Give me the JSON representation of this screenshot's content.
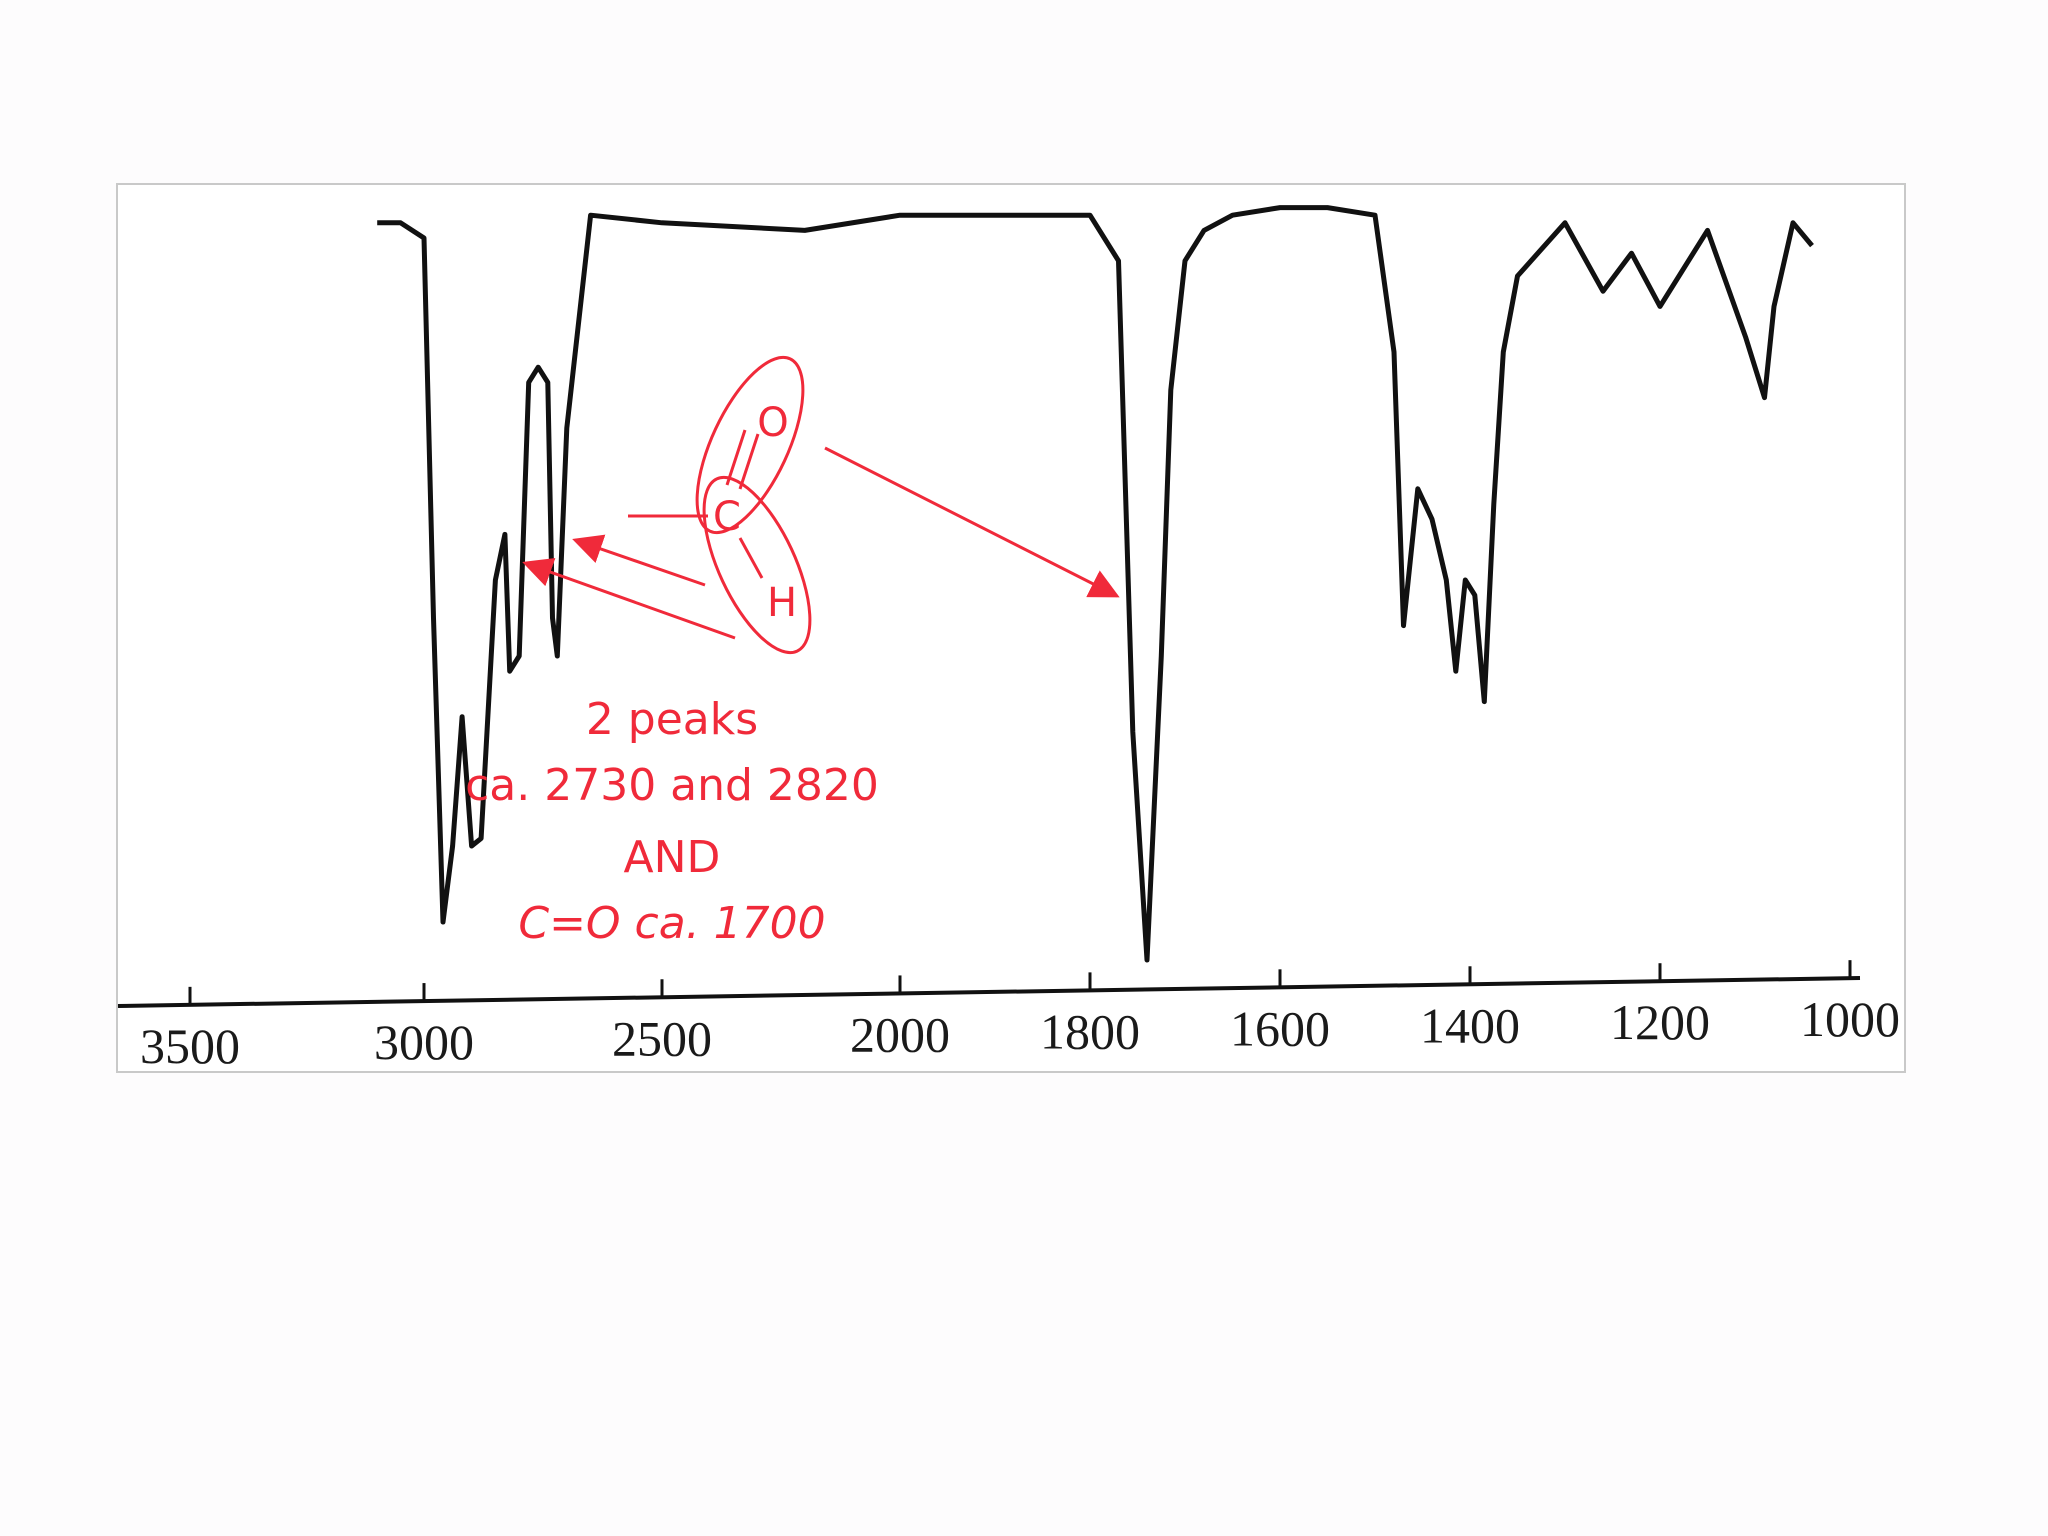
{
  "chart_data": {
    "type": "line",
    "title": "",
    "xlabel": "",
    "ylabel": "",
    "xlim": [
      3500,
      1000
    ],
    "x_axis_reversed": true,
    "x_ticks": [
      3500,
      3000,
      2500,
      2000,
      1800,
      1600,
      1400,
      1200,
      1000
    ],
    "x_tick_labels": [
      "3500",
      "3000",
      "2500",
      "2000",
      "1800",
      "1600",
      "1400",
      "1200",
      "1000"
    ],
    "grid": false,
    "series": [
      {
        "color": "#111111",
        "x": [
          3100,
          3050,
          3000,
          2980,
          2960,
          2940,
          2920,
          2900,
          2880,
          2850,
          2830,
          2820,
          2800,
          2780,
          2760,
          2740,
          2730,
          2720,
          2700,
          2650,
          2500,
          2200,
          2000,
          1800,
          1770,
          1755,
          1740,
          1725,
          1715,
          1700,
          1680,
          1650,
          1600,
          1550,
          1500,
          1480,
          1470,
          1455,
          1440,
          1425,
          1415,
          1405,
          1395,
          1385,
          1375,
          1365,
          1350,
          1300,
          1260,
          1230,
          1200,
          1150,
          1110,
          1090,
          1080,
          1060,
          1040
        ],
        "y": [
          3,
          3,
          5,
          55,
          95,
          85,
          68,
          85,
          84,
          50,
          44,
          62,
          60,
          24,
          22,
          24,
          55,
          60,
          30,
          2,
          3,
          4,
          2,
          2,
          8,
          70,
          100,
          60,
          25,
          8,
          4,
          2,
          1,
          1,
          2,
          20,
          56,
          38,
          42,
          50,
          62,
          50,
          52,
          66,
          40,
          20,
          10,
          3,
          12,
          7,
          14,
          4,
          18,
          26,
          14,
          3,
          6
        ]
      }
    ]
  },
  "annotation": {
    "line1": "2 peaks",
    "line2": "ca. 2730 and  2820",
    "line3": "AND",
    "line4": "C=O ca. 1700",
    "atom_o": "O",
    "atom_c": "C",
    "atom_h": "H",
    "color": "#f02a3a"
  }
}
